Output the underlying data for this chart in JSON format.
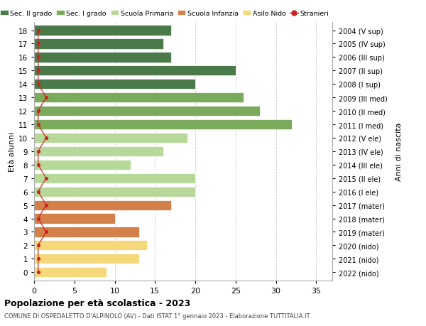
{
  "ages": [
    18,
    17,
    16,
    15,
    14,
    13,
    12,
    11,
    10,
    9,
    8,
    7,
    6,
    5,
    4,
    3,
    2,
    1,
    0
  ],
  "years": [
    "2004 (V sup)",
    "2005 (IV sup)",
    "2006 (III sup)",
    "2007 (II sup)",
    "2008 (I sup)",
    "2009 (III med)",
    "2010 (II med)",
    "2011 (I med)",
    "2012 (V ele)",
    "2013 (IV ele)",
    "2014 (III ele)",
    "2015 (II ele)",
    "2016 (I ele)",
    "2017 (mater)",
    "2018 (mater)",
    "2019 (mater)",
    "2020 (nido)",
    "2021 (nido)",
    "2022 (nido)"
  ],
  "values": [
    17,
    16,
    17,
    25,
    20,
    26,
    28,
    32,
    19,
    16,
    12,
    20,
    20,
    17,
    10,
    13,
    14,
    13,
    9
  ],
  "stranieri_x": [
    0.5,
    0.5,
    0.5,
    0.5,
    0.5,
    1.5,
    0.5,
    0.5,
    1.5,
    0.5,
    0.5,
    1.5,
    0.5,
    1.5,
    0.5,
    1.5,
    0.5,
    0.5,
    0.5
  ],
  "age_colors": {
    "18": "#4a7a4a",
    "17": "#4a7a4a",
    "16": "#4a7a4a",
    "15": "#4a7a4a",
    "14": "#4a7a4a",
    "13": "#7aab5a",
    "12": "#7aab5a",
    "11": "#7aab5a",
    "10": "#b8d89a",
    "9": "#b8d89a",
    "8": "#b8d89a",
    "7": "#b8d89a",
    "6": "#b8d89a",
    "5": "#d4804a",
    "4": "#d4804a",
    "3": "#d4804a",
    "2": "#f5d87a",
    "1": "#f5d87a",
    "0": "#f5d87a"
  },
  "colors": {
    "sec2": "#4a7a4a",
    "sec1": "#7aab5a",
    "primaria": "#b8d89a",
    "infanzia": "#d4804a",
    "nido": "#f5d87a",
    "stranieri": "#cc2222"
  },
  "title": "Popolazione per età scolastica - 2023",
  "subtitle": "COMUNE DI OSPEDALETTO D'ALPINOLO (AV) - Dati ISTAT 1° gennaio 2023 - Elaborazione TUTTITALIA.IT",
  "ylabel_left": "Età alunni",
  "ylabel_right": "Anni di nascita",
  "xlim": [
    0,
    37
  ],
  "xticks": [
    0,
    5,
    10,
    15,
    20,
    25,
    30,
    35
  ],
  "legend_labels": [
    "Sec. II grado",
    "Sec. I grado",
    "Scuola Primaria",
    "Scuola Infanzia",
    "Asilo Nido",
    "Stranieri"
  ],
  "legend_colors": [
    "#4a7a4a",
    "#7aab5a",
    "#b8d89a",
    "#d4804a",
    "#f5d87a",
    "#cc2222"
  ],
  "bg_color": "#ffffff",
  "grid_color": "#cccccc"
}
